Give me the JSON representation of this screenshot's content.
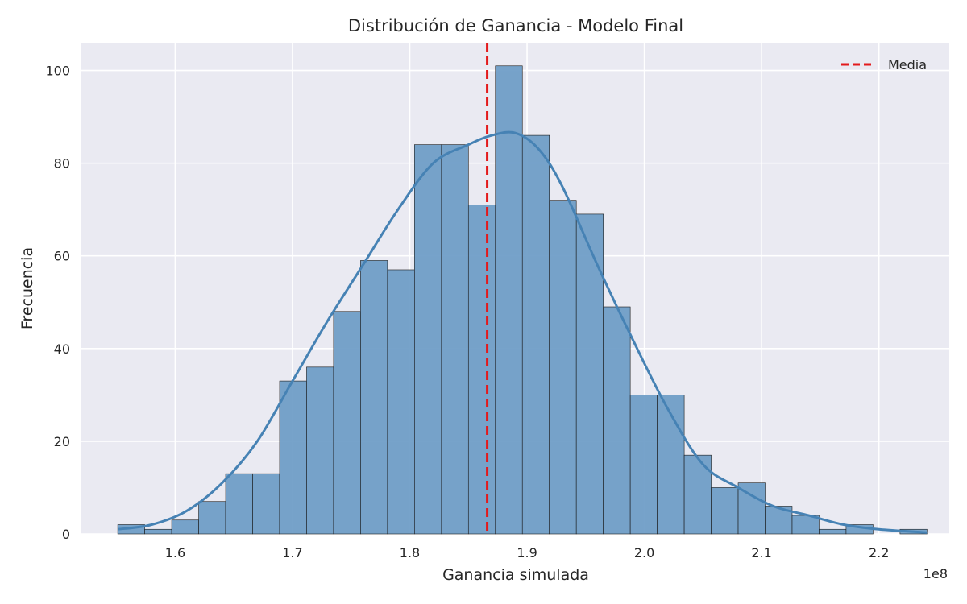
{
  "chart_data": {
    "type": "bar",
    "title": "Distribución de Ganancia - Modelo Final",
    "xlabel": "Ganancia simulada",
    "ylabel": "Frecuencia",
    "x_offset_label": "1e8",
    "xlim": [
      1.52,
      2.26
    ],
    "ylim": [
      0,
      106
    ],
    "x_ticks": [
      1.6,
      1.7,
      1.8,
      1.9,
      2.0,
      2.1,
      2.2
    ],
    "x_tick_labels": [
      "1.6",
      "1.7",
      "1.8",
      "1.9",
      "2.0",
      "2.1",
      "2.2"
    ],
    "y_ticks": [
      0,
      20,
      40,
      60,
      80,
      100
    ],
    "y_tick_labels": [
      "0",
      "20",
      "40",
      "60",
      "80",
      "100"
    ],
    "grid": true,
    "bin_edges": [
      1.551,
      1.574,
      1.597,
      1.62,
      1.643,
      1.666,
      1.689,
      1.712,
      1.735,
      1.758,
      1.781,
      1.804,
      1.827,
      1.85,
      1.873,
      1.896,
      1.919,
      1.942,
      1.965,
      1.988,
      2.011,
      2.034,
      2.057,
      2.08,
      2.103,
      2.126,
      2.149,
      2.172,
      2.195,
      2.218,
      2.241
    ],
    "counts": [
      2,
      1,
      3,
      7,
      13,
      13,
      33,
      36,
      48,
      59,
      57,
      84,
      84,
      71,
      101,
      86,
      72,
      69,
      49,
      30,
      30,
      17,
      10,
      11,
      6,
      4,
      1,
      2,
      0,
      1
    ],
    "kde": {
      "x": [
        1.551,
        1.58,
        1.61,
        1.64,
        1.67,
        1.7,
        1.73,
        1.76,
        1.79,
        1.82,
        1.85,
        1.87,
        1.89,
        1.91,
        1.93,
        1.96,
        1.99,
        2.02,
        2.05,
        2.08,
        2.11,
        2.14,
        2.17,
        2.2,
        2.241
      ],
      "y": [
        1,
        2,
        5,
        11,
        20,
        33,
        46,
        58,
        70,
        80,
        84,
        86,
        86.5,
        83,
        75,
        58,
        42,
        27,
        15,
        10,
        6,
        4,
        2,
        1,
        0.3
      ]
    },
    "mean_line": {
      "x": 1.866,
      "label": "Media"
    },
    "legend_position": "top-right",
    "colors": {
      "bar_fill": "#6b9bc6",
      "bar_edge": "#1a1a1a",
      "kde": "#4682b4",
      "mean": "#e31a1c",
      "plot_bg": "#eaeaf2",
      "grid": "#ffffff"
    }
  }
}
